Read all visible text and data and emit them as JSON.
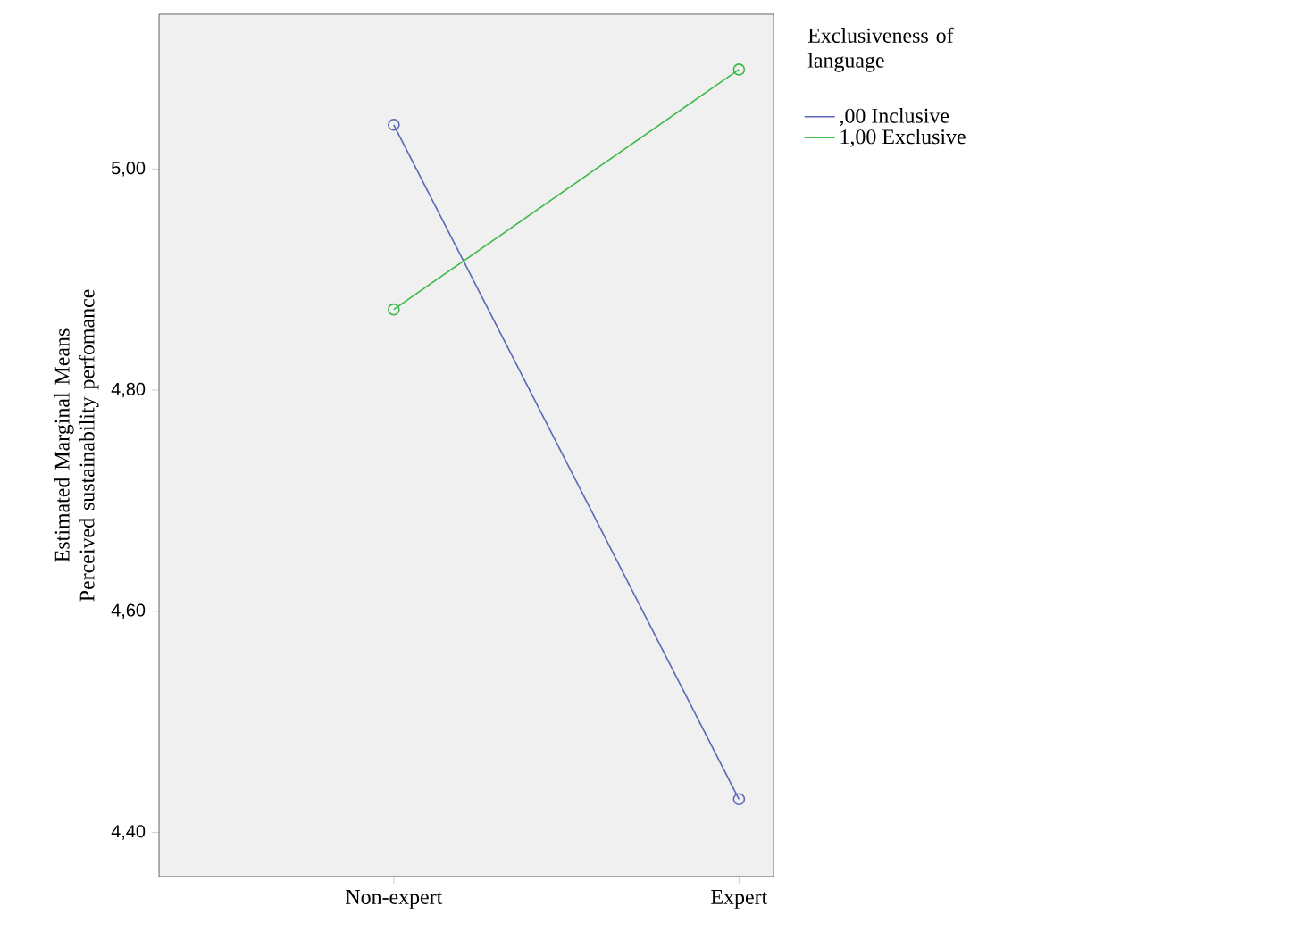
{
  "chart_data": {
    "type": "line",
    "categories": [
      "Non-expert",
      "Expert"
    ],
    "series": [
      {
        "name": ",00 Inclusive",
        "color": "#5a67b4",
        "values": [
          5.04,
          4.43
        ]
      },
      {
        "name": "1,00 Exclusive",
        "color": "#3fb84a",
        "values": [
          4.873,
          5.09
        ]
      }
    ],
    "ylabel": "Estimated Marginal Means Perceived sustainability perfomance",
    "legend_title": "Exclusiveness of language",
    "ylim": [
      4.36,
      5.14
    ],
    "yticks": [
      {
        "value": 4.4,
        "label": "4,40"
      },
      {
        "value": 4.6,
        "label": "4,60"
      },
      {
        "value": 4.8,
        "label": "4,80"
      },
      {
        "value": 5.0,
        "label": "5,00"
      }
    ],
    "legend": "right",
    "marker": "circle",
    "line_style": "solid",
    "grid": false
  }
}
